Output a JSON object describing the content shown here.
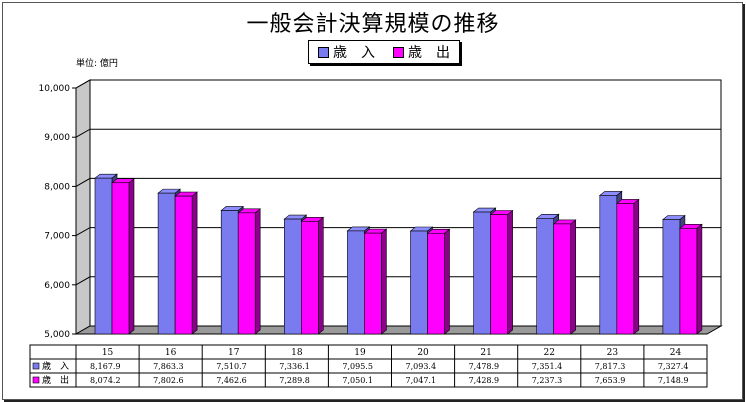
{
  "chart_data": {
    "type": "bar",
    "title": "一般会計決算規模の推移",
    "unit_label": "単位: 億円",
    "categories": [
      "15",
      "16",
      "17",
      "18",
      "19",
      "20",
      "21",
      "22",
      "23",
      "24"
    ],
    "series": [
      {
        "name": "歳　入",
        "color": "#7b7bf0",
        "values": [
          8167.9,
          7863.3,
          7510.7,
          7336.1,
          7095.5,
          7093.4,
          7478.9,
          7351.4,
          7817.3,
          7327.4
        ],
        "labels": [
          "8,167.9",
          "7,863.3",
          "7,510.7",
          "7,336.1",
          "7,095.5",
          "7,093.4",
          "7,478.9",
          "7,351.4",
          "7,817.3",
          "7,327.4"
        ]
      },
      {
        "name": "歳　出",
        "color": "#ff00ff",
        "values": [
          8074.2,
          7802.6,
          7462.6,
          7289.8,
          7050.1,
          7047.1,
          7428.9,
          7237.3,
          7653.9,
          7148.9
        ],
        "labels": [
          "8,074.2",
          "7,802.6",
          "7,462.6",
          "7,289.8",
          "7,050.1",
          "7,047.1",
          "7,428.9",
          "7,237.3",
          "7,653.9",
          "7,148.9"
        ]
      }
    ],
    "ylim": [
      5000,
      10000
    ],
    "yticks": [
      "5,000",
      "6,000",
      "7,000",
      "8,000",
      "9,000",
      "10,000"
    ],
    "grid": true,
    "legend": "top-center",
    "data_table": true
  }
}
